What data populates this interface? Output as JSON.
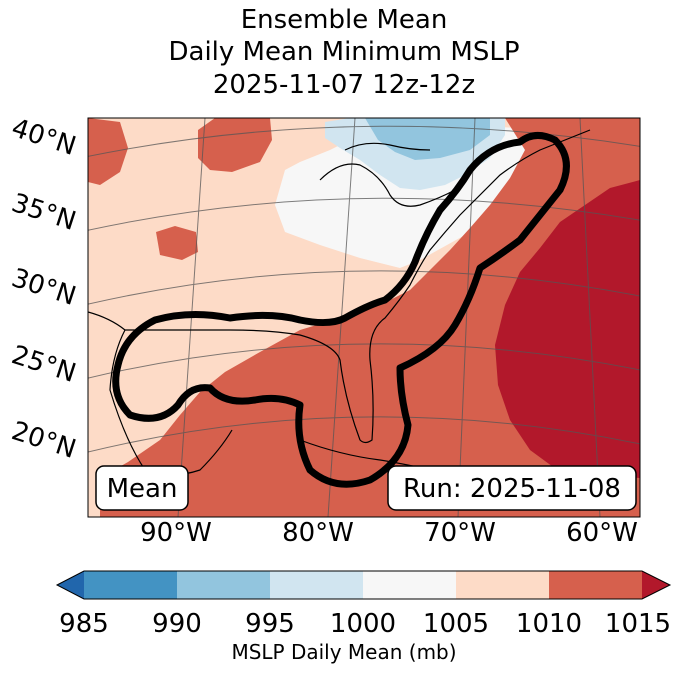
{
  "title": {
    "line1": "Ensemble Mean",
    "line2": "Daily Mean Minimum MSLP",
    "line3": "2025-11-07 12z-12z"
  },
  "lat_labels": [
    "40°N",
    "35°N",
    "30°N",
    "25°N",
    "20°N"
  ],
  "lon_labels": [
    "90°W",
    "80°W",
    "70°W",
    "60°W"
  ],
  "annotations": {
    "left": "Mean",
    "right": "Run: 2025-11-08"
  },
  "colorbar": {
    "label": "MSLP Daily Mean (mb)",
    "ticks": [
      "985",
      "990",
      "995",
      "1000",
      "1005",
      "1010",
      "1015"
    ],
    "colors": [
      "#2166ac",
      "#4393c3",
      "#92c5de",
      "#d1e5f0",
      "#f7f7f7",
      "#fddbc7",
      "#d6604d",
      "#b2182b"
    ]
  }
}
